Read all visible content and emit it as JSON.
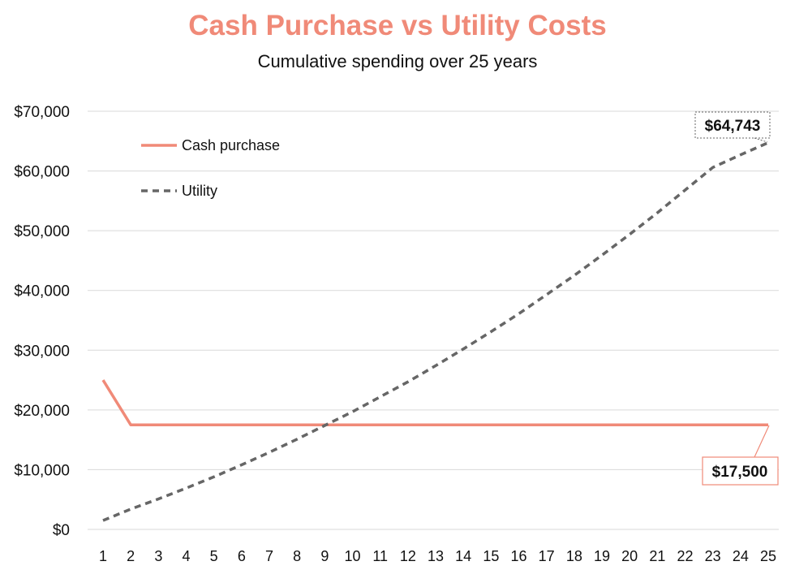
{
  "chart_data": {
    "type": "line",
    "title": "Cash Purchase vs Utility Costs",
    "subtitle": "Cumulative spending over 25 years",
    "xlabel": "",
    "ylabel": "",
    "x": [
      1,
      2,
      3,
      4,
      5,
      6,
      7,
      8,
      9,
      10,
      11,
      12,
      13,
      14,
      15,
      16,
      17,
      18,
      19,
      20,
      21,
      22,
      23,
      24,
      25
    ],
    "ylim": [
      0,
      70000
    ],
    "yticks": [
      0,
      10000,
      20000,
      30000,
      40000,
      50000,
      60000,
      70000
    ],
    "ytick_labels": [
      "$0",
      "$10,000",
      "$20,000",
      "$30,000",
      "$40,000",
      "$50,000",
      "$60,000",
      "$70,000"
    ],
    "grid": true,
    "legend_position": "top-left",
    "series": [
      {
        "name": "Cash purchase",
        "color": "#f08a78",
        "style": "solid",
        "values": [
          25000,
          17500,
          17500,
          17500,
          17500,
          17500,
          17500,
          17500,
          17500,
          17500,
          17500,
          17500,
          17500,
          17500,
          17500,
          17500,
          17500,
          17500,
          17500,
          17500,
          17500,
          17500,
          17500,
          17500,
          17500
        ]
      },
      {
        "name": "Utility",
        "color": "#666666",
        "style": "dashed",
        "values": [
          1500,
          3400,
          5100,
          6900,
          8800,
          10800,
          12900,
          15100,
          17400,
          19700,
          22200,
          24700,
          27400,
          30200,
          33100,
          36100,
          39300,
          42500,
          45900,
          49400,
          53000,
          56800,
          60600,
          62700,
          64743
        ]
      }
    ],
    "annotations": [
      {
        "series": "Utility",
        "label": "$64,743",
        "color": "#666666"
      },
      {
        "series": "Cash purchase",
        "label": "$17,500",
        "color": "#f08a78"
      }
    ]
  }
}
